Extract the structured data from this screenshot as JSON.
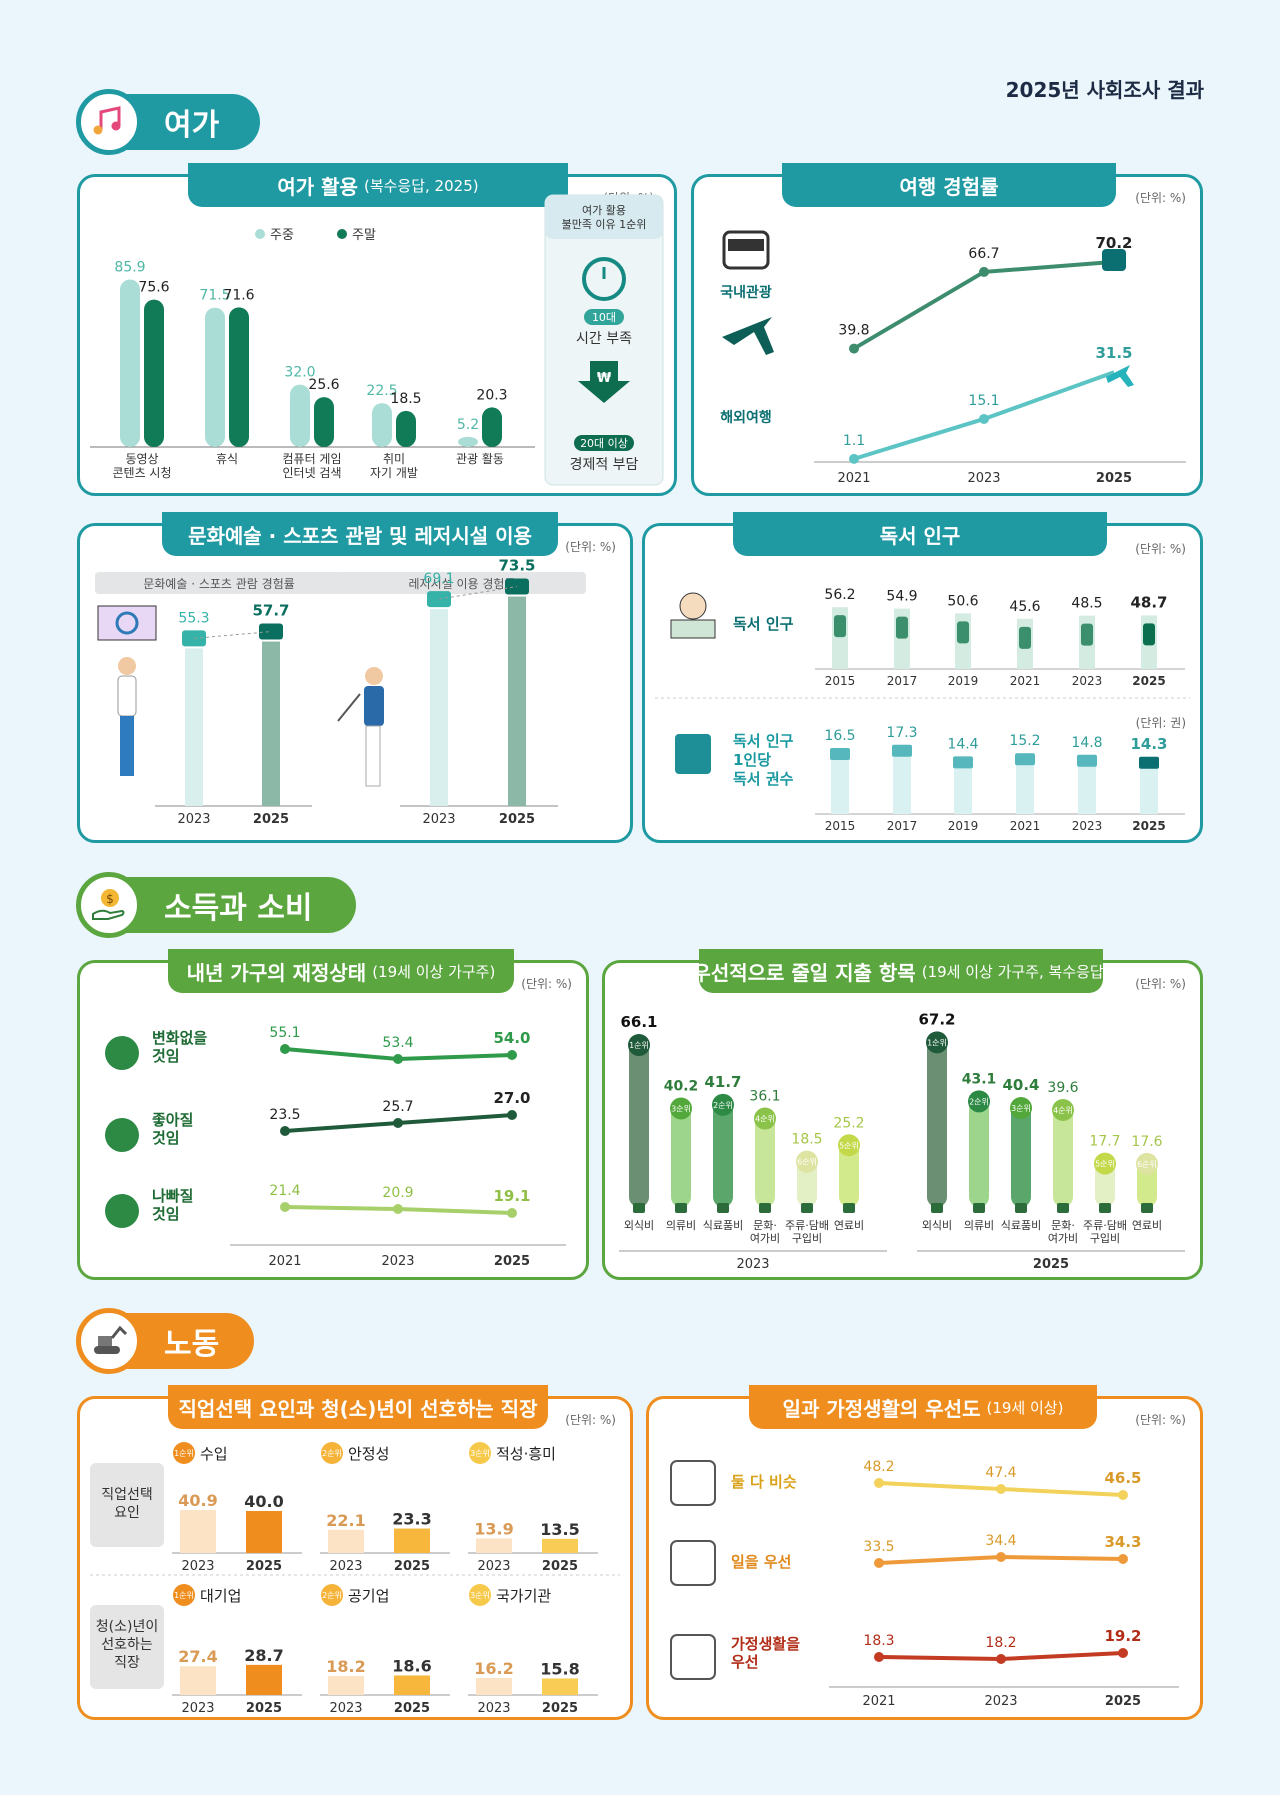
{
  "report_title": "2025년 사회조사 결과",
  "sections": {
    "leisure": "여가",
    "income": "소득과 소비",
    "labor": "노동"
  },
  "colors": {
    "teal": "#1a9aa0",
    "teal_dark": "#0b6f72",
    "green": "#5ba63f",
    "green_dark": "#1f6e3a",
    "orange": "#ef8e1e",
    "light_teal": "#a9ddd6"
  },
  "chart_data": [
    {
      "id": "leisure_activity",
      "type": "bar",
      "title": "여가 활용",
      "subtitle": "(복수응답, 2025)",
      "unit": "(단위: %)",
      "categories": [
        "동영상\n콘텐츠 시청",
        "휴식",
        "컴퓨터 게임\n인터넷 검색",
        "취미\n자기 개발",
        "관광 활동"
      ],
      "series": [
        {
          "name": "주중",
          "values": [
            85.9,
            71.5,
            32.0,
            22.5,
            5.2
          ],
          "color": "#a9ddd6"
        },
        {
          "name": "주말",
          "values": [
            75.6,
            71.6,
            25.6,
            18.5,
            20.3
          ],
          "color": "#117a57"
        }
      ],
      "side_box": {
        "title": "여가 활용\n불만족 이유 1순위",
        "item1_badge": "10대",
        "item1_label": "시간 부족",
        "item2_badge": "20대 이상",
        "item2_label": "경제적 부담"
      }
    },
    {
      "id": "travel",
      "type": "line",
      "title": "여행 경험률",
      "unit": "(단위: %)",
      "x": [
        "2021",
        "2023",
        "2025"
      ],
      "series": [
        {
          "name": "국내관광",
          "values": [
            39.8,
            66.7,
            70.2
          ],
          "color": "#3d8c6e"
        },
        {
          "name": "해외여행",
          "values": [
            1.1,
            15.1,
            31.5
          ],
          "color": "#5cc4c4"
        }
      ]
    },
    {
      "id": "culture",
      "type": "bar",
      "title": "문화예술 · 스포츠 관람 및 레저시설 이용",
      "unit": "(단위: %)",
      "groups": [
        {
          "label": "문화예술 · 스포츠 관람 경험률",
          "x": [
            "2023",
            "2025"
          ],
          "values": [
            55.3,
            57.7
          ]
        },
        {
          "label": "레저시설 이용 경험률",
          "x": [
            "2023",
            "2025"
          ],
          "values": [
            69.1,
            73.5
          ]
        }
      ]
    },
    {
      "id": "reading",
      "type": "bar",
      "title": "독서 인구",
      "rows": [
        {
          "label": "독서 인구",
          "unit": "(단위: %)",
          "x": [
            "2015",
            "2017",
            "2019",
            "2021",
            "2023",
            "2025"
          ],
          "values": [
            56.2,
            54.9,
            50.6,
            45.6,
            48.5,
            48.7
          ]
        },
        {
          "label": "독서 인구\n1인당\n독서 권수",
          "unit": "(단위: 권)",
          "x": [
            "2015",
            "2017",
            "2019",
            "2021",
            "2023",
            "2025"
          ],
          "values": [
            16.5,
            17.3,
            14.4,
            15.2,
            14.8,
            14.3
          ]
        }
      ]
    },
    {
      "id": "finance",
      "type": "line",
      "title": "내년 가구의 재정상태",
      "subtitle": "(19세 이상 가구주)",
      "unit": "(단위: %)",
      "x": [
        "2021",
        "2023",
        "2025"
      ],
      "series": [
        {
          "name": "변화없을\n것임",
          "values": [
            55.1,
            53.4,
            54.0
          ],
          "color": "#2e9a4a"
        },
        {
          "name": "좋아질\n것임",
          "values": [
            23.5,
            25.7,
            27.0
          ],
          "color": "#1f5a3a"
        },
        {
          "name": "나빠질\n것임",
          "values": [
            21.4,
            20.9,
            19.1
          ],
          "color": "#a7cf6a"
        }
      ]
    },
    {
      "id": "spending_cut",
      "type": "bar",
      "title": "우선적으로 줄일 지출 항목",
      "subtitle": "(19세 이상 가구주, 복수응답)",
      "unit": "(단위: %)",
      "categories": [
        "외식비",
        "의류비",
        "식료품비",
        "문화·\n여가비",
        "주류·담배\n구입비",
        "연료비"
      ],
      "groups": [
        {
          "year": "2023",
          "values": [
            66.1,
            40.2,
            41.7,
            36.1,
            18.5,
            25.2
          ],
          "ranks": [
            "1순위",
            "3순위",
            "2순위",
            "4순위",
            "6순위",
            "5순위"
          ]
        },
        {
          "year": "2025",
          "values": [
            67.2,
            43.1,
            40.4,
            39.6,
            17.7,
            17.6
          ],
          "ranks": [
            "1순위",
            "2순위",
            "3순위",
            "4순위",
            "5순위",
            "6순위"
          ]
        }
      ]
    },
    {
      "id": "job",
      "type": "bar",
      "title": "직업선택 요인과 청(소)년이 선호하는 직장",
      "unit": "(단위: %)",
      "rows": [
        {
          "label": "직업선택\n요인",
          "items": [
            {
              "rank": "1순위",
              "name": "수입",
              "x": [
                "2023",
                "2025"
              ],
              "values": [
                40.9,
                40.0
              ]
            },
            {
              "rank": "2순위",
              "name": "안정성",
              "x": [
                "2023",
                "2025"
              ],
              "values": [
                22.1,
                23.3
              ]
            },
            {
              "rank": "3순위",
              "name": "적성·흥미",
              "x": [
                "2023",
                "2025"
              ],
              "values": [
                13.9,
                13.5
              ]
            }
          ]
        },
        {
          "label": "청(소)년이\n선호하는\n직장",
          "items": [
            {
              "rank": "1순위",
              "name": "대기업",
              "x": [
                "2023",
                "2025"
              ],
              "values": [
                27.4,
                28.7
              ]
            },
            {
              "rank": "2순위",
              "name": "공기업",
              "x": [
                "2023",
                "2025"
              ],
              "values": [
                18.2,
                18.6
              ]
            },
            {
              "rank": "3순위",
              "name": "국가기관",
              "x": [
                "2023",
                "2025"
              ],
              "values": [
                16.2,
                15.8
              ]
            }
          ]
        }
      ]
    },
    {
      "id": "worklife",
      "type": "line",
      "title": "일과 가정생활의 우선도",
      "subtitle": "(19세 이상)",
      "unit": "(단위: %)",
      "x": [
        "2021",
        "2023",
        "2025"
      ],
      "series": [
        {
          "name": "둘 다 비슷",
          "values": [
            48.2,
            47.4,
            46.5
          ],
          "color": "#f2d25a"
        },
        {
          "name": "일을 우선",
          "values": [
            33.5,
            34.4,
            34.3
          ],
          "color": "#ef9a3a"
        },
        {
          "name": "가정생활을\n우선",
          "values": [
            18.3,
            18.2,
            19.2
          ],
          "color": "#c23b22"
        }
      ]
    }
  ]
}
